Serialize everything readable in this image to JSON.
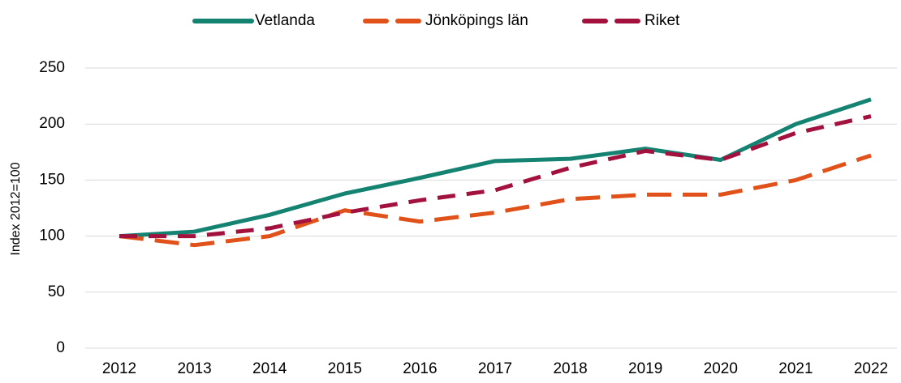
{
  "chart_data": {
    "type": "line",
    "ylabel": "Index 2012=100",
    "categories": [
      "2012",
      "2013",
      "2014",
      "2015",
      "2016",
      "2017",
      "2018",
      "2019",
      "2020",
      "2021",
      "2022"
    ],
    "series": [
      {
        "name": "Vetlanda",
        "color": "#148371",
        "dash": "solid",
        "values": [
          100,
          104,
          119,
          138,
          152,
          167,
          169,
          178,
          168,
          200,
          222
        ]
      },
      {
        "name": "Jönköpings län",
        "color": "#e0521a",
        "dash": "long",
        "values": [
          100,
          92,
          100,
          123,
          113,
          121,
          133,
          137,
          137,
          150,
          172
        ]
      },
      {
        "name": "Riket",
        "color": "#a3123f",
        "dash": "medium",
        "values": [
          100,
          100,
          107,
          121,
          132,
          141,
          161,
          176,
          168,
          192,
          207
        ]
      }
    ],
    "ylim": [
      0,
      250
    ],
    "yticks": [
      0,
      50,
      100,
      150,
      200,
      250
    ],
    "grid": true,
    "legend": "top"
  }
}
